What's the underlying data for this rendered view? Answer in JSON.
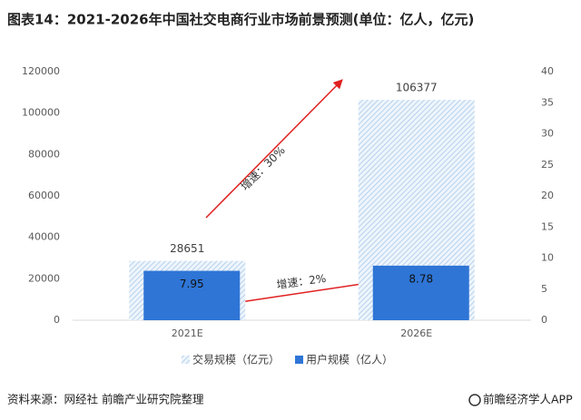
{
  "chart_data": {
    "type": "bar",
    "title": "图表14：2021-2026年中国社交电商行业市场前景预测(单位：亿人，亿元)",
    "categories": [
      "2021E",
      "2026E"
    ],
    "series": [
      {
        "name": "交易规模（亿元）",
        "color": "#bdd7ee",
        "values": [
          28651,
          106377
        ]
      },
      {
        "name": "用户规模（亿人）",
        "color": "#2e75d6",
        "values": [
          7.95,
          8.78
        ],
        "axis": "y2"
      }
    ],
    "ylim": [
      0,
      120000
    ],
    "yticks": [
      0,
      20000,
      40000,
      60000,
      80000,
      100000,
      120000
    ],
    "y2lim": [
      0,
      40
    ],
    "y2ticks": [
      0,
      5,
      10,
      15,
      20,
      25,
      30,
      35,
      40
    ],
    "grid": false,
    "annotations": [
      "增速：30%",
      "增速：2%"
    ],
    "source": "资料来源：网经社 前瞻产业研究院整理",
    "credit": "前瞻经济学人APP"
  }
}
